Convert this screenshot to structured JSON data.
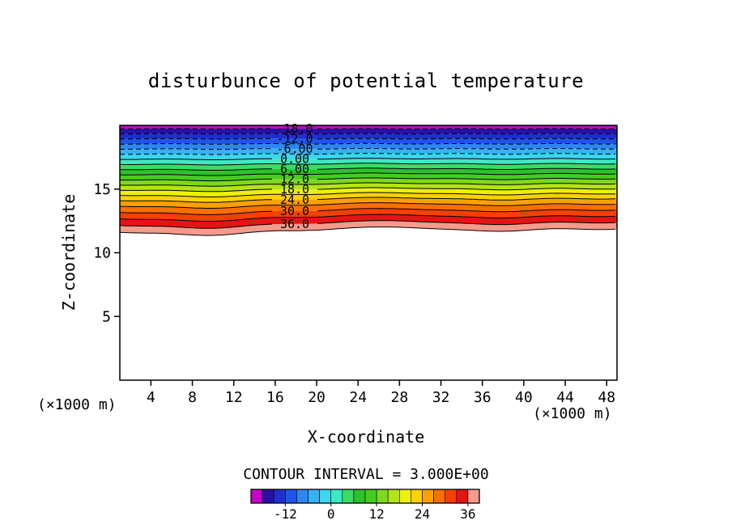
{
  "title": "disturbunce of potential temperature",
  "contour_interval_label": "CONTOUR INTERVAL = 3.000E+00",
  "x_axis": {
    "label": "X-coordinate",
    "units": "(×1000 m)",
    "ticks": [
      4,
      8,
      12,
      16,
      20,
      24,
      28,
      32,
      36,
      40,
      44,
      48
    ]
  },
  "y_axis": {
    "label": "Z-coordinate",
    "units": "(×1000 m)",
    "ticks": [
      5,
      10,
      15
    ]
  },
  "chart_data": {
    "type": "heatmap",
    "subtype": "filled_contour",
    "title": "disturbunce of potential temperature",
    "xlabel": "X-coordinate",
    "ylabel": "Z-coordinate",
    "x_units_note": "(×1000 m)",
    "y_units_note": "(×1000 m)",
    "x_ticks": [
      4,
      8,
      12,
      16,
      20,
      24,
      28,
      32,
      36,
      40,
      44,
      48
    ],
    "y_ticks": [
      5,
      10,
      15
    ],
    "xlim": [
      1,
      49
    ],
    "ylim": [
      0,
      20
    ],
    "grid": false,
    "contour_interval": 3.0,
    "negative_contours_dashed": true,
    "contour_levels": [
      -21,
      -18,
      -15,
      -12,
      -9,
      -6,
      -3,
      0,
      3,
      6,
      9,
      12,
      15,
      18,
      21,
      24,
      27,
      30,
      33,
      36,
      39
    ],
    "band_colors": [
      "#c400c8",
      "#2810a8",
      "#1f2ed0",
      "#2055e8",
      "#2f86f2",
      "#35b2f2",
      "#3cd6ee",
      "#3ce9c3",
      "#3cdc64",
      "#2cc22c",
      "#46cc1e",
      "#7ed81e",
      "#b4e414",
      "#ecf00a",
      "#fcd200",
      "#fca000",
      "#fa7000",
      "#f64000",
      "#e51414",
      "#f59a8c"
    ],
    "contour_line_labels": [
      {
        "level": -18,
        "text": "-18.0"
      },
      {
        "level": -12,
        "text": "-12.0"
      },
      {
        "level": -6,
        "text": "-6.00"
      },
      {
        "level": 0,
        "text": "0.00"
      },
      {
        "level": 6,
        "text": "6.00"
      },
      {
        "level": 12,
        "text": "12.0"
      },
      {
        "level": 18,
        "text": "18.0"
      },
      {
        "level": 24,
        "text": "24.0"
      },
      {
        "level": 30,
        "text": "30.0"
      },
      {
        "level": 36,
        "text": "36.0"
      }
    ],
    "colorbar": {
      "min": -21,
      "max": 39,
      "tick_values": [
        -12,
        0,
        12,
        24,
        36
      ],
      "tick_labels": [
        "-12",
        "0",
        "12",
        "24",
        "36"
      ]
    }
  }
}
